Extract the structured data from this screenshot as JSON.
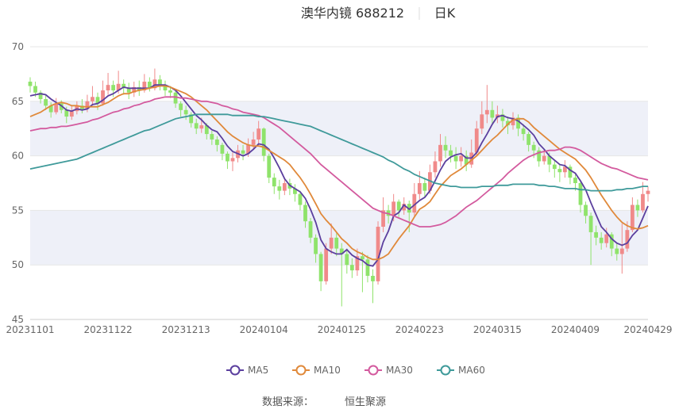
{
  "chart_data": {
    "type": "candlestick",
    "title": "澳华内镜 688212",
    "subtitle": "日K",
    "categories": [
      "20231101",
      null,
      null,
      null,
      null,
      null,
      null,
      null,
      null,
      null,
      null,
      null,
      null,
      null,
      null,
      "20231122",
      null,
      null,
      null,
      null,
      null,
      null,
      null,
      null,
      null,
      null,
      null,
      null,
      null,
      null,
      "20231213",
      null,
      null,
      null,
      null,
      null,
      null,
      null,
      null,
      null,
      null,
      null,
      null,
      null,
      null,
      "20240104",
      null,
      null,
      null,
      null,
      null,
      null,
      null,
      null,
      null,
      null,
      null,
      null,
      null,
      null,
      "20240125",
      null,
      null,
      null,
      null,
      null,
      null,
      null,
      null,
      null,
      null,
      null,
      null,
      null,
      null,
      "20240223",
      null,
      null,
      null,
      null,
      null,
      null,
      null,
      null,
      null,
      null,
      null,
      null,
      null,
      null,
      "20240315",
      null,
      null,
      null,
      null,
      null,
      null,
      null,
      null,
      null,
      null,
      null,
      null,
      null,
      null,
      "20240409",
      null,
      null,
      null,
      null,
      null,
      null,
      null,
      null,
      null,
      null,
      null,
      null,
      null,
      "20240429"
    ],
    "ohlc": [
      [
        66.8,
        66.4,
        65.8,
        67.2
      ],
      [
        66.4,
        65.8,
        65.4,
        66.8
      ],
      [
        65.8,
        65.2,
        64.8,
        66.0
      ],
      [
        65.2,
        64.6,
        64.2,
        65.6
      ],
      [
        64.6,
        64.0,
        63.5,
        64.9
      ],
      [
        64.0,
        64.8,
        63.8,
        65.3
      ],
      [
        64.8,
        64.2,
        63.9,
        65.1
      ],
      [
        64.2,
        63.6,
        63.0,
        64.5
      ],
      [
        63.6,
        64.1,
        63.3,
        64.6
      ],
      [
        64.1,
        64.6,
        63.8,
        65.0
      ],
      [
        64.6,
        64.3,
        63.9,
        65.2
      ],
      [
        64.3,
        65.0,
        64.0,
        65.6
      ],
      [
        65.0,
        65.4,
        64.6,
        66.4
      ],
      [
        65.4,
        64.8,
        64.2,
        65.8
      ],
      [
        64.8,
        66.0,
        64.6,
        66.9
      ],
      [
        66.0,
        66.5,
        65.6,
        67.6
      ],
      [
        66.5,
        66.0,
        65.4,
        66.9
      ],
      [
        66.0,
        66.6,
        65.7,
        67.8
      ],
      [
        66.6,
        66.2,
        65.6,
        67.0
      ],
      [
        66.2,
        65.8,
        65.2,
        66.7
      ],
      [
        65.8,
        66.3,
        65.4,
        66.8
      ],
      [
        66.3,
        66.0,
        65.5,
        66.9
      ],
      [
        66.0,
        66.8,
        65.8,
        67.5
      ],
      [
        66.8,
        66.2,
        65.9,
        67.2
      ],
      [
        66.2,
        67.0,
        66.0,
        68.0
      ],
      [
        67.0,
        66.5,
        66.0,
        67.4
      ],
      [
        66.5,
        66.0,
        65.5,
        66.9
      ],
      [
        66.0,
        65.8,
        65.3,
        66.4
      ],
      [
        65.8,
        64.8,
        64.4,
        66.0
      ],
      [
        64.8,
        64.2,
        63.6,
        65.0
      ],
      [
        64.2,
        63.8,
        63.3,
        64.6
      ],
      [
        63.8,
        63.0,
        62.6,
        64.0
      ],
      [
        63.0,
        62.5,
        62.0,
        63.4
      ],
      [
        62.5,
        62.8,
        62.1,
        63.5
      ],
      [
        62.8,
        62.0,
        61.5,
        63.0
      ],
      [
        62.0,
        61.5,
        61.0,
        62.3
      ],
      [
        61.5,
        61.0,
        60.4,
        61.8
      ],
      [
        61.0,
        60.2,
        59.6,
        61.2
      ],
      [
        60.2,
        59.5,
        58.8,
        60.4
      ],
      [
        59.5,
        59.8,
        58.6,
        60.3
      ],
      [
        59.8,
        60.5,
        59.4,
        61.0
      ],
      [
        60.5,
        60.2,
        59.6,
        61.0
      ],
      [
        60.2,
        61.0,
        59.9,
        61.6
      ],
      [
        61.0,
        61.5,
        60.6,
        62.2
      ],
      [
        61.5,
        62.5,
        61.0,
        63.2
      ],
      [
        62.5,
        60.0,
        59.5,
        62.6
      ],
      [
        60.0,
        58.0,
        57.5,
        60.2
      ],
      [
        58.0,
        57.2,
        56.5,
        58.4
      ],
      [
        57.2,
        56.8,
        56.0,
        57.8
      ],
      [
        56.8,
        57.5,
        56.4,
        58.0
      ],
      [
        57.5,
        57.0,
        56.4,
        57.9
      ],
      [
        57.0,
        56.5,
        55.8,
        57.4
      ],
      [
        56.5,
        55.5,
        55.0,
        56.8
      ],
      [
        55.5,
        54.0,
        53.4,
        55.8
      ],
      [
        54.0,
        52.5,
        52.0,
        54.3
      ],
      [
        52.5,
        51.0,
        50.2,
        52.8
      ],
      [
        51.0,
        48.5,
        47.6,
        51.2
      ],
      [
        48.5,
        51.5,
        48.2,
        52.0
      ],
      [
        51.5,
        52.5,
        51.0,
        53.8
      ],
      [
        52.5,
        51.5,
        50.8,
        52.9
      ],
      [
        51.5,
        51.0,
        46.2,
        52.0
      ],
      [
        51.0,
        50.0,
        49.2,
        51.5
      ],
      [
        50.0,
        49.5,
        48.8,
        50.6
      ],
      [
        49.5,
        50.8,
        49.0,
        51.5
      ],
      [
        50.8,
        50.5,
        47.5,
        51.2
      ],
      [
        50.5,
        49.0,
        48.4,
        50.9
      ],
      [
        49.0,
        48.5,
        46.5,
        49.6
      ],
      [
        48.5,
        53.5,
        48.2,
        54.0
      ],
      [
        53.5,
        55.0,
        53.0,
        56.2
      ],
      [
        55.0,
        54.5,
        53.8,
        55.5
      ],
      [
        54.5,
        55.8,
        54.0,
        56.5
      ],
      [
        55.8,
        55.0,
        54.4,
        56.0
      ],
      [
        55.0,
        55.6,
        54.6,
        56.2
      ],
      [
        55.6,
        54.8,
        53.0,
        55.9
      ],
      [
        54.8,
        56.5,
        54.5,
        57.5
      ],
      [
        56.5,
        57.5,
        56.0,
        58.6
      ],
      [
        57.5,
        56.8,
        56.2,
        58.0
      ],
      [
        56.8,
        58.5,
        56.5,
        59.2
      ],
      [
        58.5,
        59.5,
        58.0,
        60.4
      ],
      [
        59.5,
        61.0,
        59.0,
        62.0
      ],
      [
        61.0,
        60.5,
        59.8,
        61.8
      ],
      [
        60.5,
        60.0,
        59.4,
        61.0
      ],
      [
        60.0,
        59.5,
        58.8,
        60.8
      ],
      [
        59.5,
        60.0,
        59.0,
        60.8
      ],
      [
        60.0,
        59.2,
        58.6,
        60.5
      ],
      [
        59.2,
        60.3,
        58.9,
        61.5
      ],
      [
        60.3,
        62.5,
        60.0,
        63.2
      ],
      [
        62.5,
        63.8,
        62.0,
        65.0
      ],
      [
        63.8,
        64.2,
        63.0,
        66.5
      ],
      [
        64.2,
        63.5,
        63.0,
        65.0
      ],
      [
        63.5,
        63.8,
        63.0,
        64.6
      ],
      [
        63.8,
        63.2,
        62.6,
        64.3
      ],
      [
        63.2,
        62.8,
        62.0,
        63.6
      ],
      [
        62.8,
        63.5,
        62.4,
        64.0
      ],
      [
        63.5,
        62.5,
        61.8,
        63.8
      ],
      [
        62.5,
        62.0,
        61.4,
        62.9
      ],
      [
        62.0,
        61.0,
        60.4,
        62.2
      ],
      [
        61.0,
        60.5,
        59.8,
        61.3
      ],
      [
        60.5,
        59.5,
        59.0,
        60.8
      ],
      [
        59.5,
        60.0,
        59.2,
        60.6
      ],
      [
        60.0,
        59.2,
        58.5,
        60.3
      ],
      [
        59.2,
        58.8,
        58.0,
        59.6
      ],
      [
        58.8,
        58.5,
        57.6,
        59.2
      ],
      [
        58.5,
        59.0,
        58.0,
        59.6
      ],
      [
        59.0,
        58.0,
        57.4,
        59.2
      ],
      [
        58.0,
        57.5,
        56.8,
        58.3
      ],
      [
        57.5,
        55.5,
        54.8,
        57.8
      ],
      [
        55.5,
        54.5,
        53.8,
        55.8
      ],
      [
        54.5,
        53.0,
        50.0,
        54.8
      ],
      [
        53.0,
        52.5,
        51.8,
        53.6
      ],
      [
        52.5,
        52.0,
        51.4,
        53.0
      ],
      [
        52.0,
        52.8,
        51.6,
        53.4
      ],
      [
        52.8,
        51.5,
        50.8,
        53.0
      ],
      [
        51.5,
        51.0,
        50.4,
        52.0
      ],
      [
        51.0,
        51.5,
        49.2,
        53.8
      ],
      [
        51.5,
        53.2,
        51.2,
        54.0
      ],
      [
        53.2,
        55.5,
        53.0,
        56.2
      ],
      [
        55.5,
        55.0,
        54.4,
        56.0
      ],
      [
        55.0,
        56.5,
        54.8,
        57.6
      ],
      [
        56.5,
        56.8,
        55.8,
        57.2
      ]
    ],
    "up_color": "#f08a8a",
    "down_color": "#8fe36b",
    "series": [
      {
        "name": "MA5",
        "color": "#5b3f9e",
        "values": [
          65.5,
          65.6,
          65.7,
          65.6,
          65.2,
          64.9,
          64.6,
          64.2,
          64.1,
          64.3,
          64.2,
          64.3,
          64.7,
          64.8,
          65.1,
          65.5,
          65.7,
          66.0,
          66.3,
          66.2,
          66.2,
          66.2,
          66.2,
          66.2,
          66.5,
          66.5,
          66.5,
          66.3,
          66.0,
          65.5,
          64.9,
          64.3,
          63.7,
          63.3,
          62.8,
          62.4,
          62.2,
          61.6,
          60.9,
          60.4,
          60.2,
          60.0,
          60.2,
          60.6,
          61.1,
          61.0,
          60.6,
          59.8,
          58.9,
          57.9,
          57.3,
          57.0,
          56.7,
          56.1,
          55.1,
          53.9,
          52.3,
          51.5,
          51.2,
          51.0,
          51.0,
          51.4,
          50.9,
          50.6,
          50.4,
          50.0,
          49.9,
          50.5,
          52.1,
          53.1,
          54.5,
          54.8,
          55.5,
          55.1,
          55.5,
          55.9,
          56.2,
          56.8,
          57.7,
          58.7,
          59.5,
          59.9,
          60.1,
          60.2,
          59.8,
          59.8,
          60.3,
          61.2,
          62.0,
          62.9,
          63.6,
          63.7,
          63.5,
          63.4,
          63.2,
          62.8,
          62.4,
          61.9,
          61.1,
          60.6,
          60.0,
          59.6,
          59.2,
          59.1,
          58.7,
          58.4,
          57.7,
          56.9,
          55.7,
          54.6,
          53.5,
          53.0,
          52.4,
          52.0,
          51.8,
          52.0,
          52.7,
          53.2,
          54.3,
          55.4
        ]
      },
      {
        "name": "MA10",
        "color": "#e0893a",
        "values": [
          63.6,
          63.8,
          64.0,
          64.3,
          64.6,
          64.8,
          64.9,
          64.8,
          64.6,
          64.6,
          64.5,
          64.5,
          64.5,
          64.5,
          64.7,
          64.9,
          65.2,
          65.5,
          65.7,
          65.7,
          65.9,
          66.0,
          66.1,
          66.2,
          66.3,
          66.4,
          66.4,
          66.3,
          66.1,
          65.9,
          65.7,
          65.4,
          65.0,
          64.6,
          64.2,
          63.7,
          63.2,
          62.7,
          62.2,
          61.8,
          61.5,
          61.2,
          61.0,
          60.9,
          60.9,
          60.8,
          60.5,
          60.2,
          59.9,
          59.6,
          59.2,
          58.6,
          58.0,
          57.3,
          56.5,
          55.6,
          54.7,
          54.1,
          53.6,
          53.0,
          52.4,
          52.0,
          51.5,
          51.2,
          51.0,
          50.7,
          50.5,
          50.5,
          50.7,
          51.0,
          51.7,
          52.4,
          53.0,
          53.6,
          54.4,
          55.1,
          55.4,
          55.8,
          56.5,
          57.2,
          57.7,
          58.2,
          58.5,
          58.8,
          59.2,
          59.6,
          60.0,
          60.5,
          61.0,
          61.5,
          61.9,
          62.4,
          62.9,
          63.3,
          63.4,
          63.4,
          63.1,
          62.6,
          62.2,
          61.8,
          61.4,
          61.0,
          60.6,
          60.3,
          60.0,
          59.7,
          59.2,
          58.7,
          58.0,
          57.2,
          56.4,
          55.7,
          55.0,
          54.4,
          53.9,
          53.6,
          53.4,
          53.3,
          53.4,
          53.6
        ]
      },
      {
        "name": "MA30",
        "color": "#d35a9e",
        "values": [
          62.3,
          62.4,
          62.5,
          62.5,
          62.6,
          62.6,
          62.7,
          62.7,
          62.8,
          62.9,
          63.0,
          63.1,
          63.3,
          63.4,
          63.6,
          63.8,
          64.0,
          64.1,
          64.3,
          64.4,
          64.6,
          64.7,
          64.9,
          65.0,
          65.2,
          65.3,
          65.4,
          65.4,
          65.4,
          65.3,
          65.3,
          65.2,
          65.1,
          65.0,
          65.0,
          64.9,
          64.8,
          64.6,
          64.5,
          64.3,
          64.2,
          64.0,
          63.9,
          63.8,
          63.7,
          63.5,
          63.2,
          62.9,
          62.6,
          62.2,
          61.8,
          61.4,
          61.0,
          60.6,
          60.2,
          59.7,
          59.2,
          58.8,
          58.4,
          58.0,
          57.6,
          57.2,
          56.8,
          56.4,
          56.0,
          55.6,
          55.2,
          55.0,
          54.8,
          54.7,
          54.5,
          54.3,
          54.1,
          53.9,
          53.7,
          53.5,
          53.5,
          53.5,
          53.6,
          53.7,
          53.9,
          54.2,
          54.5,
          54.9,
          55.3,
          55.6,
          55.9,
          56.3,
          56.7,
          57.1,
          57.5,
          57.9,
          58.4,
          58.8,
          59.2,
          59.6,
          59.9,
          60.1,
          60.3,
          60.4,
          60.5,
          60.5,
          60.6,
          60.8,
          60.8,
          60.7,
          60.5,
          60.2,
          59.9,
          59.6,
          59.3,
          59.1,
          58.9,
          58.8,
          58.6,
          58.4,
          58.2,
          58.0,
          57.9,
          57.8
        ]
      },
      {
        "name": "MA60",
        "color": "#3f9a9a",
        "values": [
          58.8,
          58.9,
          59.0,
          59.1,
          59.2,
          59.3,
          59.4,
          59.5,
          59.6,
          59.7,
          59.9,
          60.1,
          60.3,
          60.5,
          60.7,
          60.9,
          61.1,
          61.3,
          61.5,
          61.7,
          61.9,
          62.1,
          62.3,
          62.4,
          62.6,
          62.8,
          63.0,
          63.2,
          63.4,
          63.5,
          63.6,
          63.7,
          63.8,
          63.8,
          63.8,
          63.8,
          63.8,
          63.8,
          63.8,
          63.7,
          63.7,
          63.7,
          63.7,
          63.7,
          63.6,
          63.6,
          63.5,
          63.4,
          63.3,
          63.2,
          63.1,
          63.0,
          62.9,
          62.8,
          62.7,
          62.5,
          62.3,
          62.1,
          61.9,
          61.7,
          61.5,
          61.3,
          61.1,
          60.9,
          60.7,
          60.5,
          60.3,
          60.1,
          59.9,
          59.6,
          59.4,
          59.1,
          58.8,
          58.6,
          58.3,
          58.1,
          57.9,
          57.7,
          57.5,
          57.4,
          57.3,
          57.2,
          57.2,
          57.1,
          57.1,
          57.1,
          57.1,
          57.2,
          57.2,
          57.2,
          57.3,
          57.3,
          57.3,
          57.4,
          57.4,
          57.4,
          57.4,
          57.4,
          57.3,
          57.3,
          57.2,
          57.2,
          57.1,
          57.0,
          57.0,
          57.0,
          56.9,
          56.9,
          56.8,
          56.8,
          56.8,
          56.8,
          56.8,
          56.9,
          56.9,
          57.0,
          57.0,
          57.1,
          57.2,
          57.2
        ]
      }
    ],
    "ylim": [
      45,
      70
    ],
    "yticks": [
      45,
      50,
      55,
      60,
      65,
      70
    ],
    "grid": true,
    "band_color": "#eef0f8",
    "source_label": "数据来源：",
    "source": "恒生聚源"
  }
}
